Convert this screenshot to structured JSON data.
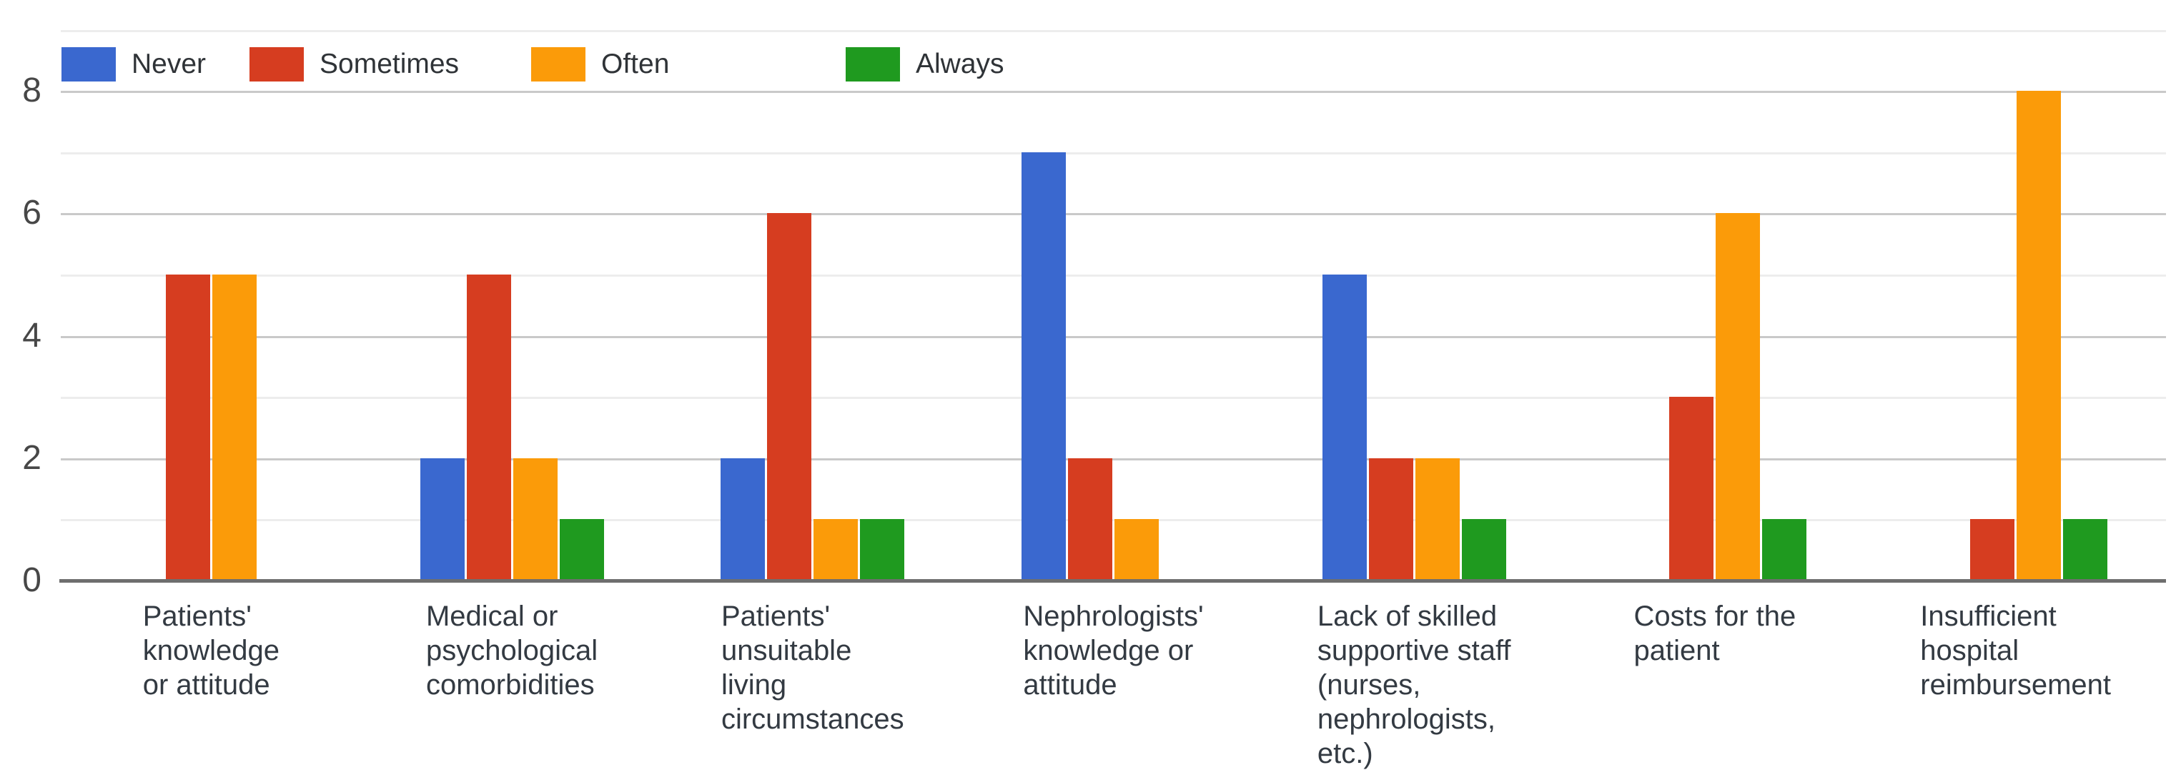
{
  "chart_data": {
    "type": "bar",
    "title": "",
    "categories": [
      "Patients' knowledge or attitude",
      "Medical or psychological comorbidities",
      "Patients' unsuitable living circumstances",
      "Nephrologists' knowledge or attitude",
      "Lack of skilled supportive staff (nurses, nephrologists, etc.)",
      "Costs for the patient",
      "Insufficient hospital reimbursement"
    ],
    "categories_wrapped": [
      "Patients'\nknowledge\nor attitude",
      "Medical or\npsychological\ncomorbidities",
      "Patients'\nunsuitable\nliving\ncircumstances",
      "Nephrologists'\nknowledge or\nattitude",
      "Lack of skilled\nsupportive staff\n(nurses,\nnephrologists,\netc.)",
      "Costs for the\npatient",
      "Insufficient\nhospital\nreimbursement"
    ],
    "series": [
      {
        "name": "Never",
        "color": "#3a68cf",
        "values": [
          0,
          2,
          2,
          7,
          5,
          0,
          0
        ]
      },
      {
        "name": "Sometimes",
        "color": "#d63d20",
        "values": [
          5,
          5,
          6,
          2,
          2,
          3,
          1
        ]
      },
      {
        "name": "Often",
        "color": "#fb9b09",
        "values": [
          5,
          2,
          1,
          1,
          2,
          6,
          8
        ]
      },
      {
        "name": "Always",
        "color": "#1f9a1f",
        "values": [
          0,
          1,
          1,
          0,
          1,
          1,
          1
        ]
      }
    ],
    "ylim": [
      0,
      9
    ],
    "yticks": [
      0,
      2,
      4,
      6,
      8
    ],
    "grid": true,
    "legend_position": "top"
  },
  "axis": {
    "y_tick_labels": [
      "0",
      "2",
      "4",
      "6",
      "8"
    ]
  },
  "colors": {
    "grid_major": "#c9c9c9",
    "grid_minor": "#ededed",
    "baseline": "#6e6e6e"
  }
}
